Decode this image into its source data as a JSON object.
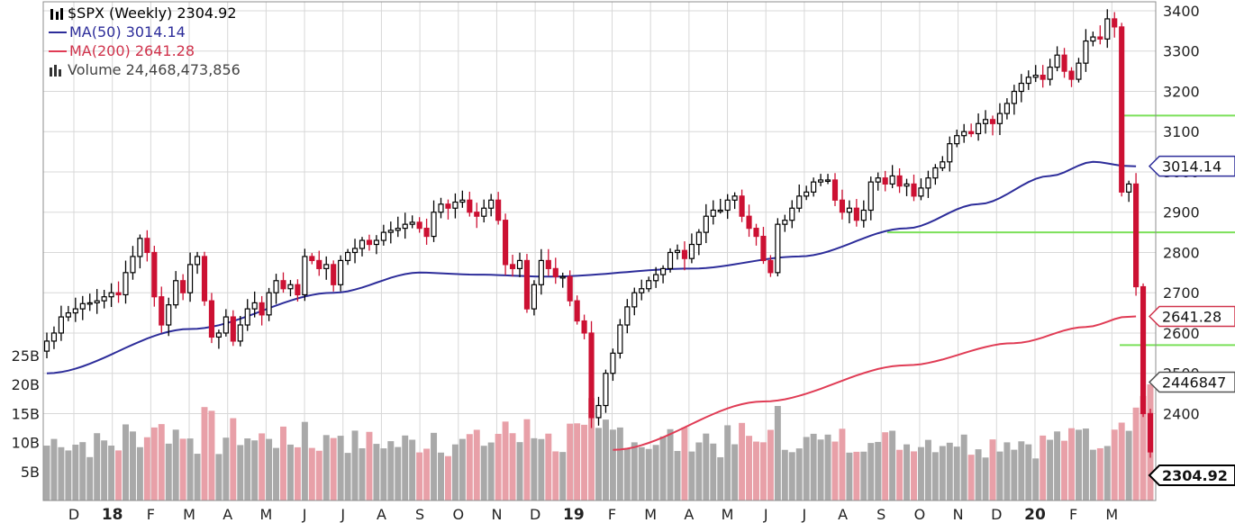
{
  "legend": {
    "symbol": "$SPX",
    "period": "(Weekly)",
    "last": "2304.92",
    "ma50_label": "MA(50)",
    "ma50_value": "3014.14",
    "ma200_label": "MA(200)",
    "ma200_value": "2641.28",
    "volume_label": "Volume",
    "volume_value": "24,468,473,856",
    "chart_icon": "candlestick-icon",
    "volume_icon": "bar-volume-icon"
  },
  "chart_data": {
    "type": "candlestick",
    "price_axis": {
      "ticks": [
        3400,
        3300,
        3200,
        3100,
        3000,
        2900,
        2800,
        2700,
        2600,
        2500,
        2400
      ],
      "ylim": [
        2310,
        3420
      ]
    },
    "volume_axis": {
      "ticks": [
        "25B",
        "20B",
        "15B",
        "10B",
        "5B"
      ],
      "max_billions": 30
    },
    "x_ticks": [
      "D",
      "18",
      "F",
      "M",
      "A",
      "M",
      "J",
      "J",
      "A",
      "S",
      "O",
      "N",
      "D",
      "19",
      "F",
      "M",
      "A",
      "M",
      "J",
      "J",
      "A",
      "S",
      "O",
      "N",
      "D",
      "20",
      "F",
      "M"
    ],
    "price_tags": [
      {
        "label": "3014.14",
        "value": 3014.14,
        "color": "#2d2d9a"
      },
      {
        "label": "2641.28",
        "value": 2641.28,
        "color": "#d0334c"
      },
      {
        "label": "2446847",
        "value": 2478,
        "color": "#555555"
      },
      {
        "label": "2304.92",
        "value": 2304.92,
        "color": "#000000"
      }
    ],
    "horizontal_lines": [
      {
        "value": 3140,
        "color": "#7be05a"
      },
      {
        "value": 2850,
        "color": "#7be05a"
      },
      {
        "value": 2570,
        "color": "#7be05a"
      }
    ],
    "colors": {
      "up": "#ffffff",
      "down": "#cc1133",
      "up_volume": "#a9a9a9",
      "down_volume": "#e8a0a8",
      "ma50": "#2d2d9a",
      "ma200": "#e03c55",
      "grid": "#d8d8d8"
    },
    "closes": [
      2580,
      2600,
      2640,
      2650,
      2660,
      2673,
      2675,
      2680,
      2690,
      2700,
      2695,
      2750,
      2790,
      2835,
      2800,
      2690,
      2620,
      2670,
      2730,
      2700,
      2770,
      2790,
      2680,
      2590,
      2600,
      2640,
      2580,
      2620,
      2660,
      2675,
      2645,
      2700,
      2730,
      2710,
      2720,
      2695,
      2790,
      2780,
      2760,
      2770,
      2720,
      2780,
      2800,
      2810,
      2830,
      2820,
      2830,
      2850,
      2855,
      2860,
      2870,
      2875,
      2860,
      2840,
      2900,
      2920,
      2910,
      2925,
      2930,
      2900,
      2890,
      2910,
      2930,
      2880,
      2770,
      2760,
      2780,
      2660,
      2720,
      2780,
      2760,
      2740,
      2740,
      2680,
      2630,
      2600,
      2390,
      2420,
      2500,
      2550,
      2620,
      2665,
      2700,
      2710,
      2730,
      2745,
      2760,
      2800,
      2805,
      2785,
      2820,
      2850,
      2890,
      2905,
      2905,
      2930,
      2940,
      2890,
      2860,
      2840,
      2780,
      2750,
      2870,
      2880,
      2910,
      2940,
      2950,
      2975,
      2980,
      2980,
      2930,
      2900,
      2910,
      2880,
      2905,
      2975,
      2985,
      2970,
      2990,
      2965,
      2970,
      2940,
      2960,
      2985,
      3010,
      3025,
      3070,
      3090,
      3100,
      3095,
      3120,
      3130,
      3120,
      3145,
      3170,
      3200,
      3220,
      3235,
      3240,
      3230,
      3260,
      3290,
      3250,
      3230,
      3270,
      3325,
      3335,
      3330,
      3380,
      3360,
      2950,
      2970,
      2715,
      2400,
      2304.92
    ],
    "ma50_anchors": [
      [
        0,
        2500
      ],
      [
        20,
        2610
      ],
      [
        40,
        2700
      ],
      [
        52,
        2750
      ],
      [
        60,
        2745
      ],
      [
        70,
        2740
      ],
      [
        90,
        2760
      ],
      [
        105,
        2790
      ],
      [
        120,
        2860
      ],
      [
        130,
        2920
      ],
      [
        140,
        2990
      ],
      [
        146,
        3025
      ],
      [
        151,
        3014.14
      ]
    ],
    "ma200_anchors": [
      [
        79,
        2310
      ],
      [
        100,
        2430
      ],
      [
        120,
        2520
      ],
      [
        135,
        2575
      ],
      [
        145,
        2615
      ],
      [
        151,
        2641.28
      ]
    ]
  }
}
